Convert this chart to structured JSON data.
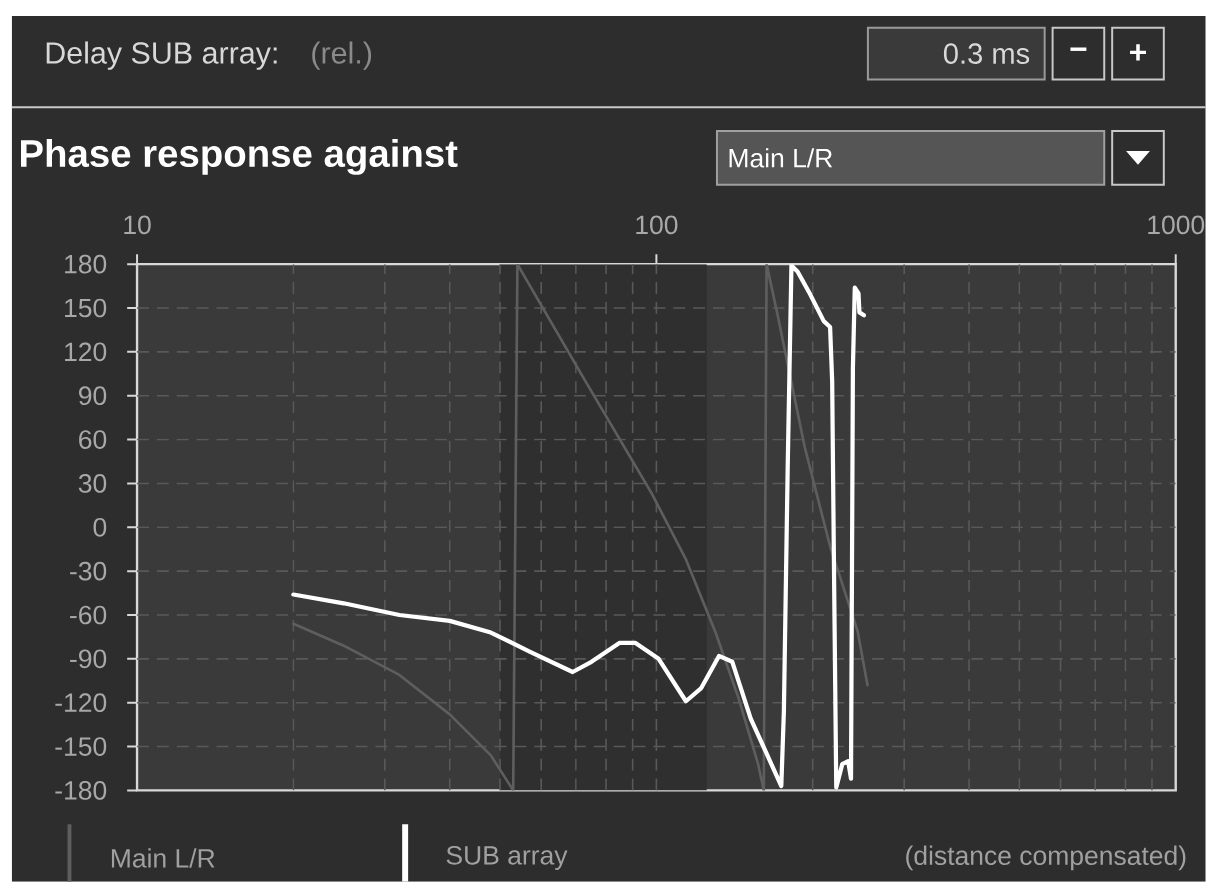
{
  "chart_data": {
    "type": "line",
    "title": "Phase response against",
    "subtitle": "Main L/R",
    "annotations": [
      "Delay SUB array:",
      "(rel.)",
      "0.3 ms",
      "−",
      "+",
      "(distance compensated)"
    ],
    "series": [
      {
        "name": "Main L/R",
        "color": "#5e5e5e",
        "x": [
          20,
          25,
          32,
          40,
          48,
          53,
          54,
          55,
          73,
          98,
          114,
          130,
          144,
          157,
          161,
          163,
          171,
          193,
          216,
          244,
          255
        ],
        "values": [
          -66,
          -81,
          -101,
          -128,
          -156,
          -180,
          180,
          175,
          100,
          23,
          -22,
          -72,
          -117,
          -162,
          -180,
          180,
          146,
          55,
          -13,
          -71,
          -108
        ]
      },
      {
        "name": "SUB array",
        "color": "#ffffff",
        "x": [
          20,
          25,
          32,
          40,
          48,
          57,
          69,
          75,
          85,
          91,
          101,
          114,
          122,
          132,
          140,
          152,
          174,
          176,
          179,
          182,
          187,
          198,
          210,
          216,
          218,
          220,
          222,
          228,
          234,
          237,
          239,
          241,
          245,
          246,
          251
        ],
        "values": [
          -46,
          -52,
          -60,
          -64,
          -72,
          -85,
          -99,
          -92,
          -79,
          -79,
          -90,
          -119,
          -110,
          -88,
          -92,
          -131,
          -177,
          -126,
          41,
          179,
          175,
          159,
          141,
          137,
          100,
          -44,
          -178,
          -162,
          -160,
          -172,
          109,
          164,
          160,
          147,
          145
        ]
      }
    ],
    "log": "x",
    "xlim": [
      10,
      1000
    ],
    "xticks": [
      10,
      {
        "value": 20,
        "label": null
      },
      {
        "value": 30,
        "label": null
      },
      {
        "value": 40,
        "label": null
      },
      {
        "value": 50,
        "label": null
      },
      {
        "value": 60,
        "label": null
      },
      {
        "value": 70,
        "label": null
      },
      {
        "value": 80,
        "label": null
      },
      {
        "value": 90,
        "label": null
      },
      100,
      {
        "value": 200,
        "label": null
      },
      {
        "value": 300,
        "label": null
      },
      {
        "value": 400,
        "label": null
      },
      {
        "value": 500,
        "label": null
      },
      {
        "value": 600,
        "label": null
      },
      {
        "value": 700,
        "label": null
      },
      {
        "value": 800,
        "label": null
      },
      {
        "value": 900,
        "label": null
      },
      1000
    ],
    "ylim": [
      -180,
      180
    ],
    "yticks": [
      -180,
      -150,
      -120,
      -90,
      -60,
      -30,
      0,
      30,
      60,
      90,
      120,
      150,
      180
    ],
    "grid": true,
    "legend": "bottom",
    "bands": [
      {
        "axis": "x",
        "from": 50,
        "to": 125,
        "color": "#2f2f2f"
      }
    ]
  }
}
